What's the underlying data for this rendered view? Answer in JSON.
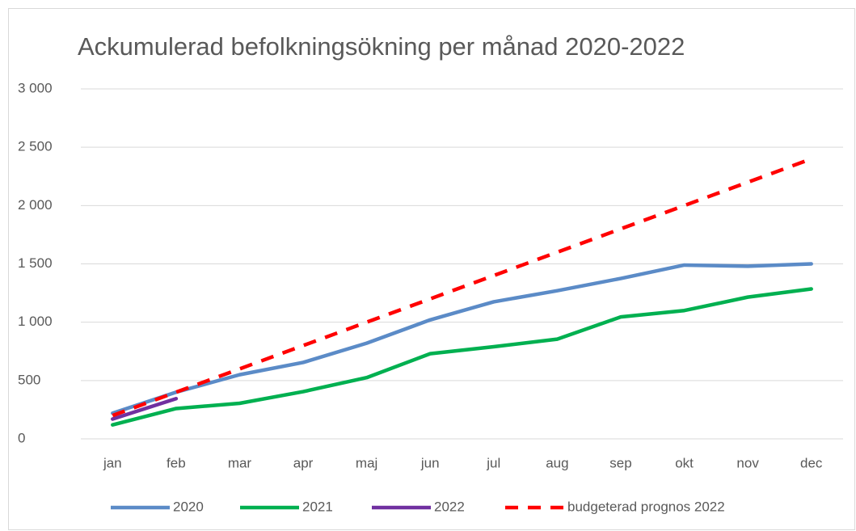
{
  "chart_data": {
    "type": "line",
    "title": "Ackumulerad befolkningsökning per månad 2020-2022",
    "categories": [
      "jan",
      "feb",
      "mar",
      "apr",
      "maj",
      "jun",
      "jul",
      "aug",
      "sep",
      "okt",
      "nov",
      "dec"
    ],
    "series": [
      {
        "name": "2020",
        "color": "#5b8bc7",
        "dash": false,
        "values": [
          220,
          400,
          550,
          655,
          820,
          1020,
          1175,
          1270,
          1375,
          1490,
          1480,
          1500
        ]
      },
      {
        "name": "2021",
        "color": "#00b050",
        "dash": false,
        "values": [
          120,
          260,
          305,
          405,
          525,
          730,
          790,
          855,
          1045,
          1100,
          1215,
          1285
        ]
      },
      {
        "name": "2022",
        "color": "#7030a0",
        "dash": false,
        "values": [
          170,
          345,
          null,
          null,
          null,
          null,
          null,
          null,
          null,
          null,
          null,
          null
        ]
      },
      {
        "name": "budgeterad prognos 2022",
        "color": "#ff0000",
        "dash": true,
        "values": [
          200,
          400,
          600,
          800,
          1000,
          1200,
          1400,
          1600,
          1800,
          2000,
          2200,
          2400
        ]
      }
    ],
    "ylim": [
      0,
      3000
    ],
    "yticks": [
      0,
      500,
      {
        "value": 1000,
        "label": "1 000"
      },
      {
        "value": 1500,
        "label": "1 500"
      },
      {
        "value": 2000,
        "label": "2 000"
      },
      {
        "value": 2500,
        "label": "2 500"
      },
      {
        "value": 3000,
        "label": "3 000"
      }
    ],
    "grid": true,
    "legend": "bottom"
  }
}
